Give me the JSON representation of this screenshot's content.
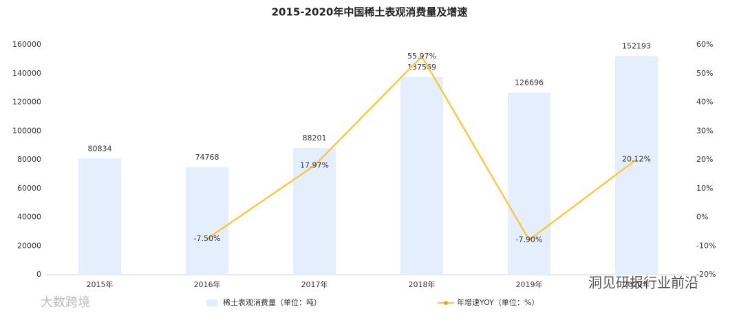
{
  "chart_data": {
    "type": "bar-line",
    "title": "2015-2020年中国稀土表观消费量及增速",
    "categories": [
      "2015年",
      "2016年",
      "2017年",
      "2018年",
      "2019年",
      "2020年"
    ],
    "series": [
      {
        "name": "稀土表观消费量（单位：吨）",
        "type": "bar",
        "color": "#e5eefc",
        "values": [
          80834,
          74768,
          88201,
          137569,
          126696,
          152193
        ]
      },
      {
        "name": "年增速YOY（单位：%）",
        "type": "line",
        "axis": "y2",
        "color": "#f8c846",
        "values": [
          null,
          -7.5,
          17.97,
          55.97,
          -7.9,
          20.12
        ],
        "value_labels": [
          null,
          "-7.50%",
          "17.97%",
          "55.97%",
          "-7.90%",
          "20.12%"
        ]
      }
    ],
    "ylim": [
      0,
      160000
    ],
    "yticks": [
      0,
      20000,
      40000,
      60000,
      80000,
      100000,
      120000,
      140000,
      160000
    ],
    "y2lim": [
      -20,
      60
    ],
    "y2ticks": [
      {
        "value": -20,
        "label": "-20%"
      },
      {
        "value": -10,
        "label": "-10%"
      },
      {
        "value": 0,
        "label": "0%"
      },
      {
        "value": 10,
        "label": "10%"
      },
      {
        "value": 20,
        "label": "20%"
      },
      {
        "value": 30,
        "label": "30%"
      },
      {
        "value": 40,
        "label": "40%"
      },
      {
        "value": 50,
        "label": "50%"
      },
      {
        "value": 60,
        "label": "60%"
      }
    ],
    "grid": false,
    "legend": "bottom",
    "watermarks": [
      "洞见研报行业前沿",
      "大数跨境"
    ]
  }
}
